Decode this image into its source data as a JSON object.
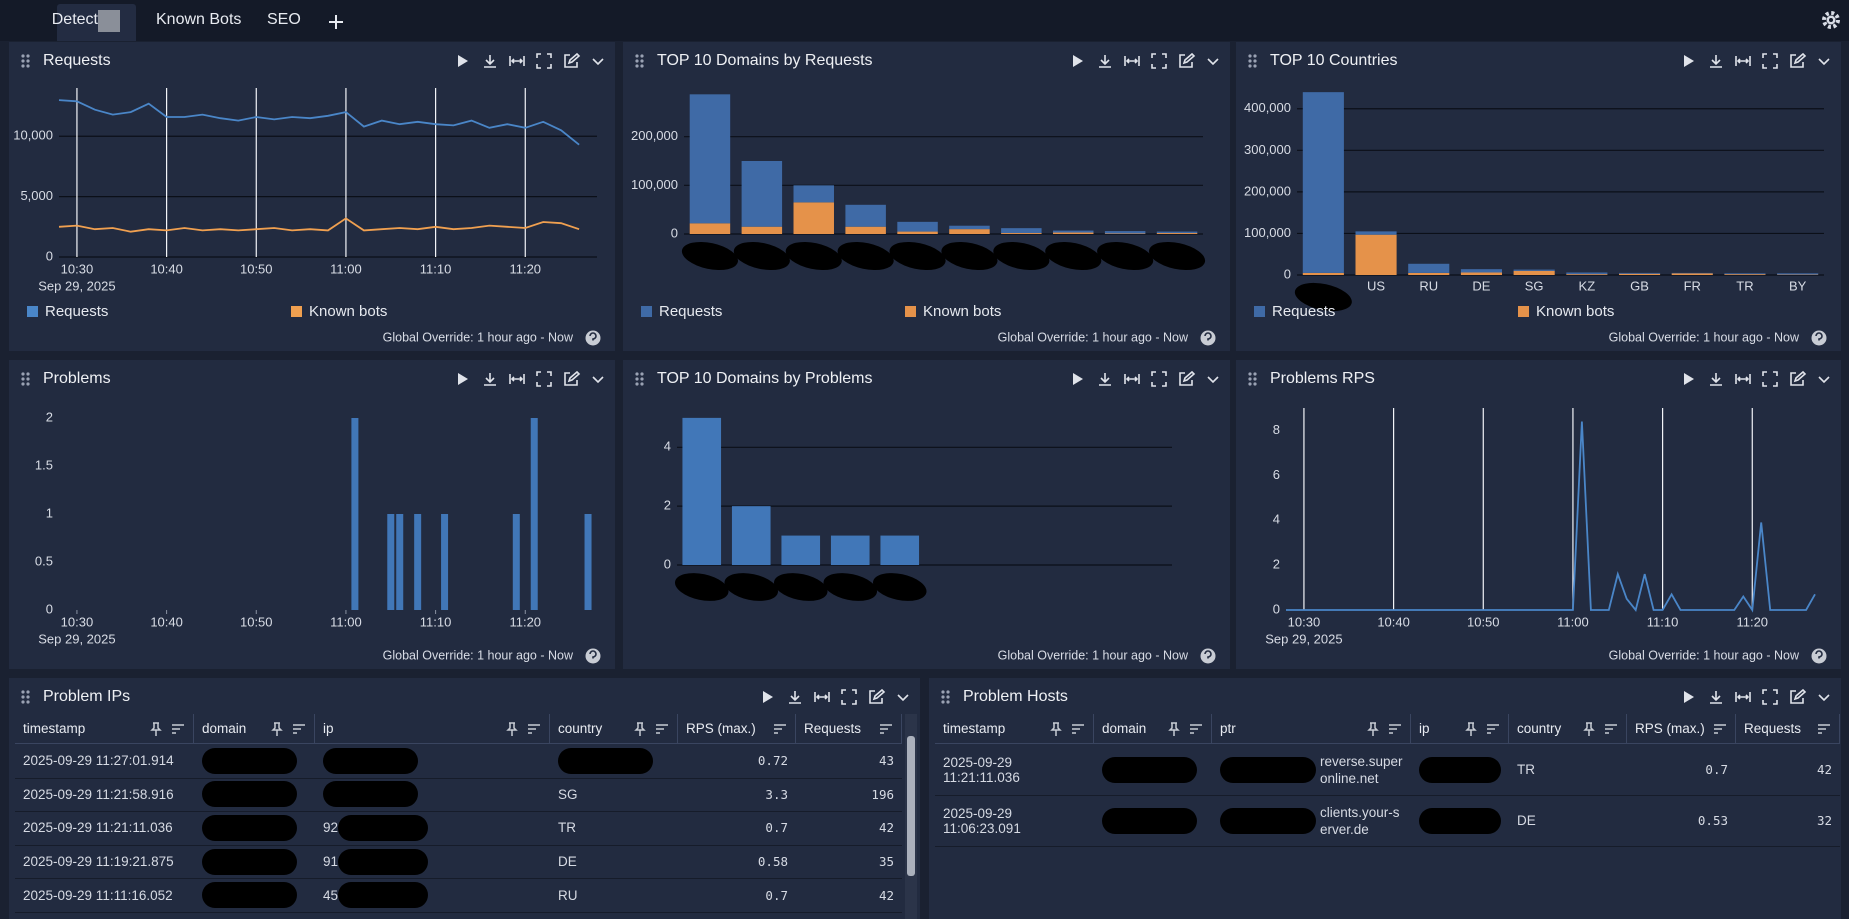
{
  "tabs": [
    "Detect",
    "Known Bots",
    "SEO"
  ],
  "note": "Global Override: 1 hour ago - Now",
  "chart_data": [
    {
      "type": "line",
      "title": "Requests",
      "x": [
        "10:28",
        "10:30",
        "10:32",
        "10:34",
        "10:36",
        "10:38",
        "10:40",
        "10:42",
        "10:44",
        "10:46",
        "10:48",
        "10:50",
        "10:52",
        "10:54",
        "10:56",
        "10:58",
        "11:00",
        "11:02",
        "11:04",
        "11:06",
        "11:08",
        "11:10",
        "11:12",
        "11:14",
        "11:16",
        "11:18",
        "11:20",
        "11:22",
        "11:24",
        "11:26"
      ],
      "xlim": [
        "10:28",
        "11:28"
      ],
      "xticks": [
        "10:30",
        "10:40",
        "10:50",
        "11:00",
        "11:10",
        "11:20"
      ],
      "x_date": "Sep 29, 2025",
      "ylim": [
        0,
        14000
      ],
      "yticks": [
        0,
        {
          "value": 5000,
          "label": "5,000"
        },
        {
          "value": 10000,
          "label": "10,000"
        }
      ],
      "xgrid": true,
      "ygrid": true,
      "legend": true,
      "series": [
        {
          "name": "Requests",
          "color": "#4a86c8",
          "values": [
            13000,
            12900,
            12200,
            11800,
            12000,
            12700,
            11600,
            11600,
            11800,
            11500,
            11300,
            11600,
            11400,
            11600,
            11500,
            11700,
            12000,
            10800,
            11300,
            11000,
            11200,
            11000,
            10900,
            11300,
            10700,
            11000,
            10700,
            11200,
            10500,
            9300
          ]
        },
        {
          "name": "Known bots",
          "color": "#f0a050",
          "values": [
            2500,
            2600,
            2300,
            2400,
            2100,
            2300,
            2200,
            2400,
            2200,
            2300,
            2200,
            2300,
            2400,
            2200,
            2300,
            2200,
            3200,
            2200,
            2300,
            2400,
            2300,
            2500,
            2300,
            2400,
            2600,
            2500,
            2400,
            2900,
            2800,
            2300
          ]
        }
      ]
    },
    {
      "type": "bar",
      "title": "TOP 10 Domains by Requests",
      "stacked": true,
      "categories": [
        null,
        null,
        null,
        null,
        null,
        null,
        null,
        null,
        null,
        null
      ],
      "ylim": [
        0,
        300000
      ],
      "yticks": [
        0,
        {
          "value": 100000,
          "label": "100,000"
        },
        {
          "value": 200000,
          "label": "200,000"
        }
      ],
      "ygrid": true,
      "legend": true,
      "series": [
        {
          "name": "Requests",
          "color": "#3f6aa6",
          "values": [
            265000,
            135000,
            35000,
            45000,
            20000,
            7000,
            10000,
            4000,
            5000,
            3000
          ]
        },
        {
          "name": "Known bots",
          "color": "#e5924a",
          "values": [
            22000,
            15000,
            65000,
            15000,
            5000,
            10000,
            2000,
            3000,
            1000,
            2000
          ]
        }
      ]
    },
    {
      "type": "bar",
      "title": "TOP 10 Countries",
      "stacked": true,
      "categories": [
        null,
        "US",
        "RU",
        "DE",
        "SG",
        "KZ",
        "GB",
        "FR",
        "TR",
        "BY"
      ],
      "ylim": [
        0,
        450000
      ],
      "yticks": [
        0,
        {
          "value": 100000,
          "label": "100,000"
        },
        {
          "value": 200000,
          "label": "200,000"
        },
        {
          "value": 300000,
          "label": "300,000"
        },
        {
          "value": 400000,
          "label": "400,000"
        }
      ],
      "ygrid": true,
      "legend": true,
      "series": [
        {
          "name": "Requests",
          "color": "#3f6aa6",
          "values": [
            435000,
            8000,
            22000,
            8000,
            3000,
            4000,
            2000,
            1000,
            2000,
            3000
          ]
        },
        {
          "name": "Known bots",
          "color": "#e5924a",
          "values": [
            5000,
            97000,
            5000,
            6000,
            10000,
            2000,
            3000,
            4000,
            2000,
            1000
          ]
        }
      ]
    },
    {
      "type": "bar",
      "title": "Problems",
      "x": [
        "11:01",
        "11:05",
        "11:06",
        "11:08",
        "11:11",
        "11:19",
        "11:21",
        "11:27"
      ],
      "values": [
        2,
        1,
        1,
        1,
        1,
        1,
        2,
        1
      ],
      "color": "#4177b8",
      "xlim": [
        "10:28",
        "11:28"
      ],
      "xticks": [
        "10:30",
        "10:40",
        "10:50",
        "11:00",
        "11:10",
        "11:20"
      ],
      "x_date": "Sep 29, 2025",
      "ylim": [
        0,
        2
      ],
      "yticks": [
        0,
        0.5,
        1,
        1.5,
        2
      ]
    },
    {
      "type": "bar",
      "title": "TOP 10 Domains by Problems",
      "categories": [
        null,
        null,
        null,
        null,
        null
      ],
      "values": [
        5,
        2,
        1,
        1,
        1
      ],
      "color": "#4177b8",
      "ylim": [
        0,
        5.2
      ],
      "yticks": [
        0,
        2,
        4
      ],
      "ygrid": true
    },
    {
      "type": "line",
      "title": "Problems RPS",
      "x": [
        "10:28",
        "10:29",
        "10:30",
        "10:31",
        "10:32",
        "10:33",
        "10:34",
        "10:35",
        "10:36",
        "10:37",
        "10:38",
        "10:39",
        "10:40",
        "10:41",
        "10:42",
        "10:43",
        "10:44",
        "10:45",
        "10:46",
        "10:47",
        "10:48",
        "10:49",
        "10:50",
        "10:51",
        "10:52",
        "10:53",
        "10:54",
        "10:55",
        "10:56",
        "10:57",
        "10:58",
        "10:59",
        "11:00",
        "11:01",
        "11:02",
        "11:03",
        "11:04",
        "11:05",
        "11:06",
        "11:07",
        "11:08",
        "11:09",
        "11:10",
        "11:11",
        "11:12",
        "11:13",
        "11:14",
        "11:15",
        "11:16",
        "11:17",
        "11:18",
        "11:19",
        "11:20",
        "11:21",
        "11:22",
        "11:23",
        "11:24",
        "11:25",
        "11:26",
        "11:27"
      ],
      "xlim": [
        "10:28",
        "11:28"
      ],
      "xticks": [
        "10:30",
        "10:40",
        "10:50",
        "11:00",
        "11:10",
        "11:20"
      ],
      "x_date": "Sep 29, 2025",
      "ylim": [
        0,
        9
      ],
      "yticks": [
        0,
        2,
        4,
        6,
        8
      ],
      "xgrid": true,
      "series": [
        {
          "name": "Problems RPS",
          "color": "#4a86c8",
          "values": [
            0,
            0,
            0,
            0,
            0,
            0,
            0,
            0,
            0,
            0,
            0,
            0,
            0,
            0,
            0,
            0,
            0,
            0,
            0,
            0,
            0,
            0,
            0,
            0,
            0,
            0,
            0,
            0,
            0,
            0,
            0,
            0,
            0,
            8.4,
            0,
            0,
            0,
            1.6,
            0.5,
            0,
            1.6,
            0,
            0,
            0.7,
            0,
            0,
            0,
            0,
            0,
            0,
            0,
            0.6,
            0,
            3.9,
            0,
            0,
            0,
            0,
            0,
            0.7
          ]
        }
      ]
    }
  ],
  "tables": [
    {
      "title": "Problem IPs",
      "columns": [
        "timestamp",
        "domain",
        "ip",
        "country",
        "RPS (max.)",
        "Requests"
      ],
      "rows": [
        [
          "2025-09-29 11:27:01.914",
          null,
          null,
          null,
          0.72,
          43
        ],
        [
          "2025-09-29 11:21:58.916",
          null,
          null,
          "SG",
          3.3,
          196
        ],
        [
          "2025-09-29 11:21:11.036",
          null,
          "92.",
          "TR",
          0.7,
          42
        ],
        [
          "2025-09-29 11:19:21.875",
          null,
          "91.",
          "DE",
          0.58,
          35
        ],
        [
          "2025-09-29 11:11:16.052",
          null,
          "45.",
          "RU",
          0.7,
          42
        ]
      ]
    },
    {
      "title": "Problem Hosts",
      "columns": [
        "timestamp",
        "domain",
        "ptr",
        "ip",
        "country",
        "RPS (max.)",
        "Requests"
      ],
      "rows": [
        [
          "2025-09-29 11:21:11.036",
          null,
          "reverse.superonline.net",
          null,
          "TR",
          0.7,
          42
        ],
        [
          "2025-09-29 11:06:23.091",
          null,
          "clients.your-server.de",
          null,
          "DE",
          0.53,
          32
        ]
      ]
    }
  ]
}
